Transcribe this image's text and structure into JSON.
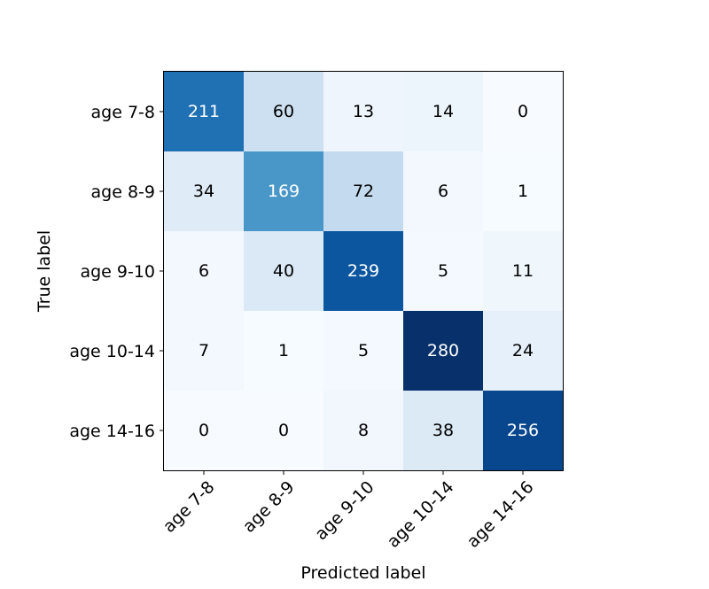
{
  "chart_data": {
    "type": "heatmap",
    "title": "",
    "xlabel": "Predicted label",
    "ylabel": "True label",
    "x_categories": [
      "age 7-8",
      "age 8-9",
      "age 9-10",
      "age 10-14",
      "age 14-16"
    ],
    "y_categories": [
      "age 7-8",
      "age 8-9",
      "age 9-10",
      "age 10-14",
      "age 14-16"
    ],
    "values": [
      [
        211,
        60,
        13,
        14,
        0
      ],
      [
        34,
        169,
        72,
        6,
        1
      ],
      [
        6,
        40,
        239,
        5,
        11
      ],
      [
        7,
        1,
        5,
        280,
        24
      ],
      [
        0,
        0,
        8,
        38,
        256
      ]
    ],
    "colormap": "Blues",
    "color_range": [
      0,
      280
    ],
    "grid": false,
    "legend": "none"
  }
}
